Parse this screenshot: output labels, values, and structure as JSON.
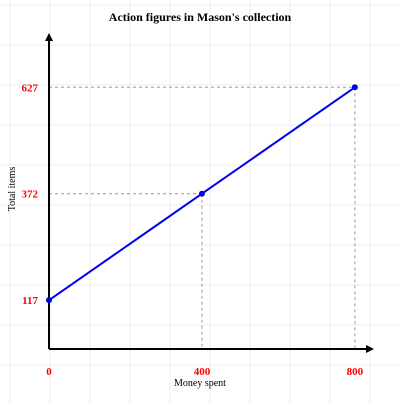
{
  "chart_data": {
    "type": "line",
    "title": "Action figures in Mason's collection",
    "xlabel": "Money spent",
    "ylabel": "Total items",
    "x_ticks": [
      "0",
      "400",
      "800"
    ],
    "y_ticks": [
      "117",
      "372",
      "627"
    ],
    "xlim": [
      0,
      850
    ],
    "ylim": [
      0,
      757
    ],
    "grid": true,
    "series": [
      {
        "x": [
          0,
          400,
          800
        ],
        "y": [
          117,
          372,
          627
        ]
      }
    ],
    "guides_at_x": [
      400,
      800
    ],
    "colors": {
      "line": "#0000ee",
      "point": "#0000ee",
      "tick_label": "#ff0000",
      "axis": "#000000",
      "guide": "#9a9a9a",
      "grid": "#ececec"
    }
  }
}
